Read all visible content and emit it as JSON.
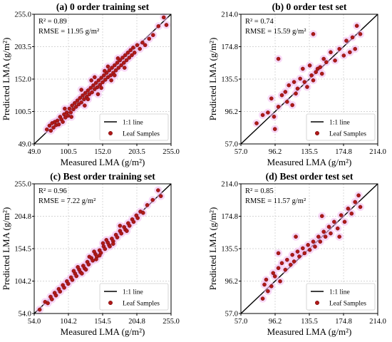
{
  "chart_data": [
    {
      "type": "scatter",
      "title": "(a) 0 order training set",
      "xlabel": "Measured LMA (g/m²)",
      "ylabel": "Predicted LMA (g/m²)",
      "xlim": [
        49.0,
        255.0
      ],
      "ylim": [
        49.0,
        255.0
      ],
      "xticks": [
        "49.0",
        "100.5",
        "152.0",
        "203.5",
        "255.0"
      ],
      "yticks": [
        "49.0",
        "100.5",
        "152.0",
        "203.5",
        "255.0"
      ],
      "stats": [
        "R² = 0.89",
        "RMSE = 11.95 g/m²"
      ],
      "legend": [
        "1:1 line",
        "Leaf Samples"
      ],
      "legend_position": "bottom-right",
      "points": [
        [
          68,
          72
        ],
        [
          72,
          78
        ],
        [
          74,
          70
        ],
        [
          76,
          82
        ],
        [
          78,
          75
        ],
        [
          80,
          84
        ],
        [
          82,
          79
        ],
        [
          84,
          86
        ],
        [
          86,
          80
        ],
        [
          88,
          92
        ],
        [
          90,
          88
        ],
        [
          92,
          84
        ],
        [
          94,
          96
        ],
        [
          96,
          91
        ],
        [
          98,
          99
        ],
        [
          100,
          94
        ],
        [
          102,
          105
        ],
        [
          104,
          99
        ],
        [
          106,
          110
        ],
        [
          108,
          104
        ],
        [
          110,
          114
        ],
        [
          112,
          108
        ],
        [
          114,
          118
        ],
        [
          116,
          112
        ],
        [
          118,
          122
        ],
        [
          120,
          115
        ],
        [
          122,
          126
        ],
        [
          124,
          120
        ],
        [
          126,
          130
        ],
        [
          128,
          124
        ],
        [
          130,
          134
        ],
        [
          132,
          128
        ],
        [
          134,
          138
        ],
        [
          136,
          131
        ],
        [
          138,
          142
        ],
        [
          140,
          136
        ],
        [
          142,
          146
        ],
        [
          144,
          139
        ],
        [
          146,
          150
        ],
        [
          148,
          143
        ],
        [
          150,
          154
        ],
        [
          152,
          147
        ],
        [
          154,
          158
        ],
        [
          156,
          151
        ],
        [
          158,
          162
        ],
        [
          160,
          155
        ],
        [
          162,
          166
        ],
        [
          164,
          158
        ],
        [
          166,
          170
        ],
        [
          168,
          162
        ],
        [
          170,
          174
        ],
        [
          172,
          166
        ],
        [
          174,
          178
        ],
        [
          176,
          170
        ],
        [
          178,
          182
        ],
        [
          180,
          174
        ],
        [
          182,
          186
        ],
        [
          184,
          178
        ],
        [
          186,
          190
        ],
        [
          188,
          182
        ],
        [
          190,
          194
        ],
        [
          192,
          186
        ],
        [
          194,
          198
        ],
        [
          196,
          190
        ],
        [
          198,
          202
        ],
        [
          200,
          194
        ],
        [
          204,
          206
        ],
        [
          208,
          200
        ],
        [
          212,
          210
        ],
        [
          216,
          206
        ],
        [
          222,
          216
        ],
        [
          228,
          222
        ],
        [
          236,
          236
        ],
        [
          244,
          250
        ],
        [
          248,
          238
        ],
        [
          120,
          135
        ],
        [
          130,
          120
        ],
        [
          140,
          155
        ],
        [
          150,
          138
        ],
        [
          160,
          172
        ],
        [
          170,
          158
        ],
        [
          145,
          128
        ],
        [
          135,
          150
        ],
        [
          155,
          165
        ],
        [
          125,
          110
        ],
        [
          95,
          105
        ],
        [
          105,
          92
        ],
        [
          165,
          150
        ],
        [
          175,
          185
        ],
        [
          185,
          170
        ]
      ]
    },
    {
      "type": "scatter",
      "title": "(b) 0 order test set",
      "xlabel": "Measured LMA (g/m²)",
      "ylabel": "Predicted LMA (g/m²)",
      "xlim": [
        57.0,
        214.0
      ],
      "ylim": [
        57.0,
        214.0
      ],
      "xticks": [
        "57.0",
        "96.2",
        "135.5",
        "174.8",
        "214.0"
      ],
      "yticks": [
        "57.0",
        "96.2",
        "135.5",
        "174.8",
        "214.0"
      ],
      "stats": [
        "R² = 0.74",
        "RMSE = 15.59 g/m²"
      ],
      "legend": [
        "1:1 line",
        "Leaf Samples"
      ],
      "legend_position": "bottom-right",
      "points": [
        [
          75,
          82
        ],
        [
          82,
          92
        ],
        [
          88,
          95
        ],
        [
          92,
          112
        ],
        [
          95,
          90
        ],
        [
          96,
          75
        ],
        [
          100,
          102
        ],
        [
          104,
          116
        ],
        [
          108,
          120
        ],
        [
          110,
          108
        ],
        [
          112,
          128
        ],
        [
          116,
          104
        ],
        [
          118,
          132
        ],
        [
          120,
          118
        ],
        [
          122,
          124
        ],
        [
          125,
          136
        ],
        [
          128,
          148
        ],
        [
          130,
          132
        ],
        [
          133,
          126
        ],
        [
          136,
          152
        ],
        [
          138,
          140
        ],
        [
          140,
          134
        ],
        [
          143,
          144
        ],
        [
          145,
          148
        ],
        [
          148,
          150
        ],
        [
          150,
          142
        ],
        [
          152,
          160
        ],
        [
          155,
          156
        ],
        [
          160,
          168
        ],
        [
          165,
          158
        ],
        [
          170,
          172
        ],
        [
          175,
          164
        ],
        [
          178,
          182
        ],
        [
          182,
          168
        ],
        [
          185,
          186
        ],
        [
          188,
          172
        ],
        [
          190,
          200
        ],
        [
          194,
          190
        ],
        [
          100,
          160
        ],
        [
          140,
          190
        ]
      ]
    },
    {
      "type": "scatter",
      "title": "(c) Best order training set",
      "xlabel": "Measured LMA (g/m²)",
      "ylabel": "Predicted LMA (g/m²)",
      "xlim": [
        54.0,
        255.0
      ],
      "ylim": [
        54.0,
        255.0
      ],
      "xticks": [
        "54.0",
        "104.2",
        "154.5",
        "204.8",
        "255.0"
      ],
      "yticks": [
        "54.0",
        "104.2",
        "154.5",
        "204.8",
        "255.0"
      ],
      "stats": [
        "R² = 0.96",
        "RMSE = 7.22 g/m²"
      ],
      "legend": [
        "1:1 line",
        "Leaf Samples"
      ],
      "legend_position": "bottom-right",
      "points": [
        [
          62,
          60
        ],
        [
          70,
          72
        ],
        [
          74,
          70
        ],
        [
          78,
          80
        ],
        [
          80,
          76
        ],
        [
          84,
          86
        ],
        [
          86,
          82
        ],
        [
          90,
          92
        ],
        [
          92,
          88
        ],
        [
          96,
          98
        ],
        [
          98,
          94
        ],
        [
          102,
          104
        ],
        [
          104,
          100
        ],
        [
          108,
          110
        ],
        [
          110,
          106
        ],
        [
          114,
          116
        ],
        [
          116,
          112
        ],
        [
          120,
          122
        ],
        [
          122,
          118
        ],
        [
          126,
          128
        ],
        [
          128,
          124
        ],
        [
          132,
          134
        ],
        [
          134,
          130
        ],
        [
          138,
          140
        ],
        [
          140,
          136
        ],
        [
          144,
          146
        ],
        [
          146,
          142
        ],
        [
          150,
          152
        ],
        [
          152,
          148
        ],
        [
          156,
          158
        ],
        [
          158,
          154
        ],
        [
          162,
          164
        ],
        [
          164,
          160
        ],
        [
          168,
          170
        ],
        [
          170,
          166
        ],
        [
          174,
          176
        ],
        [
          176,
          172
        ],
        [
          180,
          182
        ],
        [
          182,
          178
        ],
        [
          186,
          188
        ],
        [
          188,
          184
        ],
        [
          192,
          194
        ],
        [
          194,
          190
        ],
        [
          198,
          200
        ],
        [
          200,
          196
        ],
        [
          204,
          206
        ],
        [
          206,
          202
        ],
        [
          210,
          212
        ],
        [
          214,
          210
        ],
        [
          220,
          222
        ],
        [
          228,
          230
        ],
        [
          236,
          245
        ],
        [
          240,
          236
        ],
        [
          118,
          126
        ],
        [
          130,
          122
        ],
        [
          142,
          150
        ],
        [
          150,
          144
        ],
        [
          160,
          168
        ],
        [
          170,
          162
        ],
        [
          135,
          142
        ],
        [
          145,
          138
        ],
        [
          155,
          163
        ],
        [
          165,
          158
        ],
        [
          112,
          120
        ],
        [
          124,
          116
        ],
        [
          180,
          190
        ],
        [
          190,
          182
        ]
      ]
    },
    {
      "type": "scatter",
      "title": "(d) Best order test set",
      "xlabel": "Measured LMA (g/m²)",
      "ylabel": "Predicted LMA (g/m²)",
      "xlim": [
        57.0,
        214.0
      ],
      "ylim": [
        57.0,
        214.0
      ],
      "xticks": [
        "57.0",
        "96.2",
        "135.5",
        "174.8",
        "214.0"
      ],
      "yticks": [
        "57.0",
        "96.2",
        "135.5",
        "174.8",
        "214.0"
      ],
      "stats": [
        "R² = 0.85",
        "RMSE = 11.57 g/m²"
      ],
      "legend": [
        "1:1 line",
        "Leaf Samples"
      ],
      "legend_position": "bottom-right",
      "points": [
        [
          82,
          75
        ],
        [
          84,
          92
        ],
        [
          86,
          98
        ],
        [
          88,
          84
        ],
        [
          92,
          90
        ],
        [
          94,
          106
        ],
        [
          96,
          102
        ],
        [
          100,
          112
        ],
        [
          102,
          96
        ],
        [
          104,
          118
        ],
        [
          108,
          110
        ],
        [
          110,
          122
        ],
        [
          114,
          116
        ],
        [
          116,
          128
        ],
        [
          118,
          120
        ],
        [
          122,
          132
        ],
        [
          124,
          126
        ],
        [
          128,
          136
        ],
        [
          130,
          130
        ],
        [
          134,
          140
        ],
        [
          136,
          134
        ],
        [
          140,
          144
        ],
        [
          142,
          138
        ],
        [
          146,
          150
        ],
        [
          148,
          144
        ],
        [
          152,
          156
        ],
        [
          154,
          150
        ],
        [
          158,
          162
        ],
        [
          160,
          154
        ],
        [
          164,
          168
        ],
        [
          168,
          160
        ],
        [
          172,
          176
        ],
        [
          176,
          168
        ],
        [
          180,
          184
        ],
        [
          184,
          178
        ],
        [
          188,
          192
        ],
        [
          192,
          200
        ],
        [
          194,
          186
        ],
        [
          100,
          130
        ],
        [
          170,
          150
        ],
        [
          120,
          150
        ],
        [
          150,
          175
        ]
      ]
    }
  ]
}
